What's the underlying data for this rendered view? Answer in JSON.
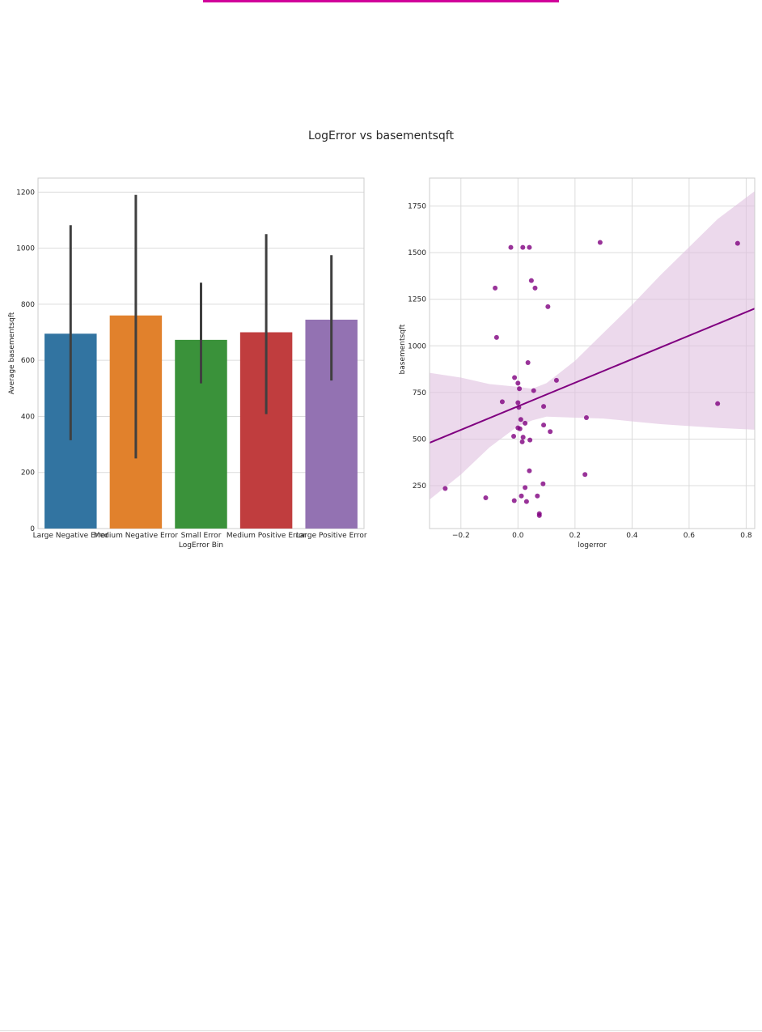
{
  "figure": {
    "title": "LogError vs basementsqft",
    "accent_color": "#d1009a"
  },
  "chart_data": [
    {
      "type": "bar",
      "categories": [
        "Large Negative Error",
        "Medium Negative Error",
        "Small Error",
        "Medium Positive Error",
        "Large Positive Error"
      ],
      "values": [
        695,
        760,
        673,
        700,
        745
      ],
      "error_low": [
        315,
        250,
        518,
        408,
        528
      ],
      "error_high": [
        1082,
        1190,
        877,
        1050,
        975
      ],
      "colors": [
        "#3274a1",
        "#e1812c",
        "#3a923a",
        "#c03d3e",
        "#9372b2"
      ],
      "xlabel": "LogError Bin",
      "ylabel": "Average basementsqft",
      "ylim": [
        0,
        1250
      ],
      "yticks": [
        0,
        200,
        400,
        600,
        800,
        1000,
        1200
      ],
      "grid": true
    },
    {
      "type": "scatter",
      "xlabel": "logerror",
      "ylabel": "basementsqft",
      "xlim": [
        -0.31,
        0.83
      ],
      "ylim": [
        20,
        1900
      ],
      "xticks": [
        -0.2,
        0.0,
        0.2,
        0.4,
        0.6,
        0.8
      ],
      "xtick_labels": [
        "−0.2",
        "0.0",
        "0.2",
        "0.4",
        "0.6",
        "0.8"
      ],
      "yticks": [
        250,
        500,
        750,
        1000,
        1250,
        1500,
        1750
      ],
      "color": "#800080",
      "band_color": "#dfbfdf",
      "grid": true,
      "points": [
        [
          -0.025,
          1528
        ],
        [
          0.017,
          1528
        ],
        [
          0.04,
          1528
        ],
        [
          0.288,
          1555
        ],
        [
          0.77,
          1550
        ],
        [
          -0.08,
          1310
        ],
        [
          0.047,
          1350
        ],
        [
          0.06,
          1310
        ],
        [
          0.105,
          1210
        ],
        [
          -0.075,
          1045
        ],
        [
          0.035,
          910
        ],
        [
          -0.012,
          830
        ],
        [
          0.0,
          800
        ],
        [
          0.005,
          770
        ],
        [
          0.135,
          815
        ],
        [
          0.055,
          760
        ],
        [
          -0.055,
          700
        ],
        [
          0.0,
          695
        ],
        [
          0.003,
          670
        ],
        [
          0.09,
          675
        ],
        [
          0.7,
          690
        ],
        [
          0.01,
          605
        ],
        [
          0.025,
          585
        ],
        [
          0.24,
          615
        ],
        [
          0.09,
          575
        ],
        [
          0.0,
          560
        ],
        [
          0.007,
          555
        ],
        [
          0.113,
          540
        ],
        [
          -0.015,
          515
        ],
        [
          0.018,
          510
        ],
        [
          0.042,
          495
        ],
        [
          0.015,
          485
        ],
        [
          0.04,
          330
        ],
        [
          0.235,
          310
        ],
        [
          0.088,
          260
        ],
        [
          -0.255,
          235
        ],
        [
          0.025,
          240
        ],
        [
          -0.113,
          185
        ],
        [
          0.012,
          195
        ],
        [
          0.068,
          195
        ],
        [
          -0.013,
          170
        ],
        [
          0.03,
          165
        ],
        [
          0.075,
          100
        ],
        [
          0.075,
          90
        ]
      ],
      "regression": {
        "x": [
          -0.31,
          0.83
        ],
        "y": [
          480,
          1200
        ]
      },
      "ci_band": {
        "x": [
          -0.31,
          -0.2,
          -0.1,
          0.0,
          0.05,
          0.1,
          0.2,
          0.3,
          0.4,
          0.5,
          0.6,
          0.7,
          0.83
        ],
        "upper": [
          855,
          830,
          795,
          780,
          770,
          800,
          920,
          1070,
          1220,
          1380,
          1530,
          1680,
          1830
        ],
        "lower": [
          175,
          310,
          455,
          570,
          600,
          620,
          615,
          610,
          595,
          580,
          570,
          560,
          550
        ]
      }
    }
  ]
}
